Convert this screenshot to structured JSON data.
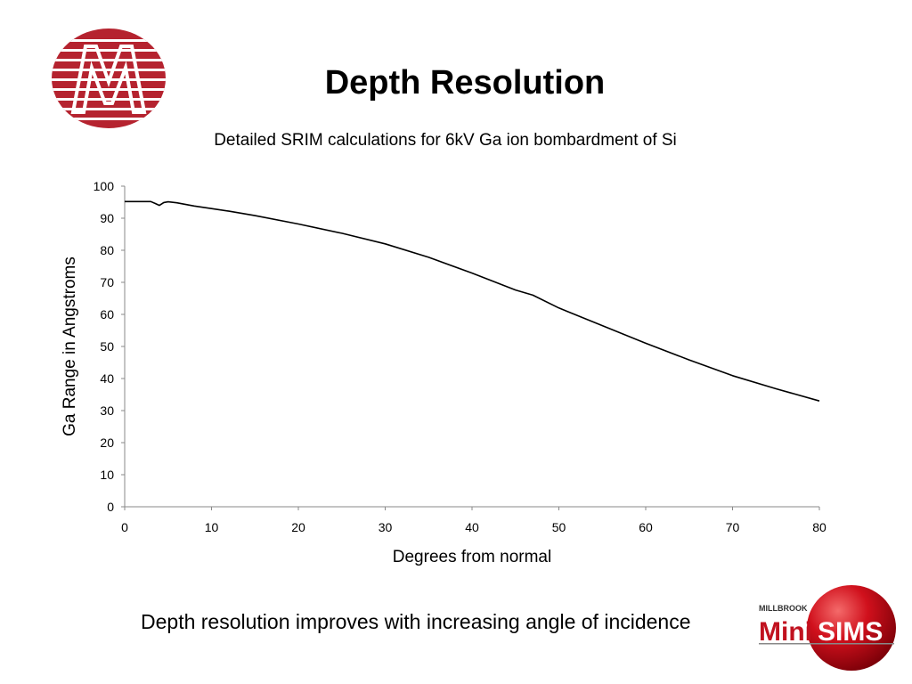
{
  "slide": {
    "title": "Depth Resolution",
    "caption": "Depth resolution improves with increasing angle of incidence"
  },
  "logos": {
    "top_left": {
      "icon": "millbrook-m-logo",
      "color": "#b5232f"
    },
    "bottom_right": {
      "icon": "millbrook-minisims-logo",
      "small_text": "MILLBROOK",
      "mini_text": "Mini",
      "sims_text": "SIMS",
      "color": "#c1121f"
    }
  },
  "chart_data": {
    "type": "line",
    "title": "Detailed SRIM calculations for 6kV Ga ion bombardment of Si",
    "xlabel": "Degrees from normal",
    "ylabel": "Ga Range in Angstroms",
    "xlim": [
      0,
      80
    ],
    "ylim": [
      0,
      100
    ],
    "xticks": [
      0,
      10,
      20,
      30,
      40,
      50,
      60,
      70,
      80
    ],
    "yticks": [
      0,
      10,
      20,
      30,
      40,
      50,
      60,
      70,
      80,
      90,
      100
    ],
    "grid": false,
    "legend": "none",
    "series": [
      {
        "color": "#000000",
        "x": [
          0,
          1,
          2,
          3,
          3.5,
          4,
          4.5,
          5,
          6,
          8,
          10,
          12,
          15,
          20,
          25,
          30,
          35,
          40,
          45,
          47,
          50,
          55,
          60,
          65,
          70,
          75,
          80
        ],
        "y": [
          95.2,
          95.2,
          95.2,
          95.2,
          94.6,
          94.0,
          94.9,
          95.1,
          94.8,
          93.8,
          93.0,
          92.2,
          90.8,
          88.2,
          85.3,
          82.0,
          77.8,
          72.9,
          67.6,
          66.0,
          62.0,
          56.5,
          51.0,
          45.8,
          40.9,
          36.8,
          33.0
        ]
      }
    ]
  }
}
